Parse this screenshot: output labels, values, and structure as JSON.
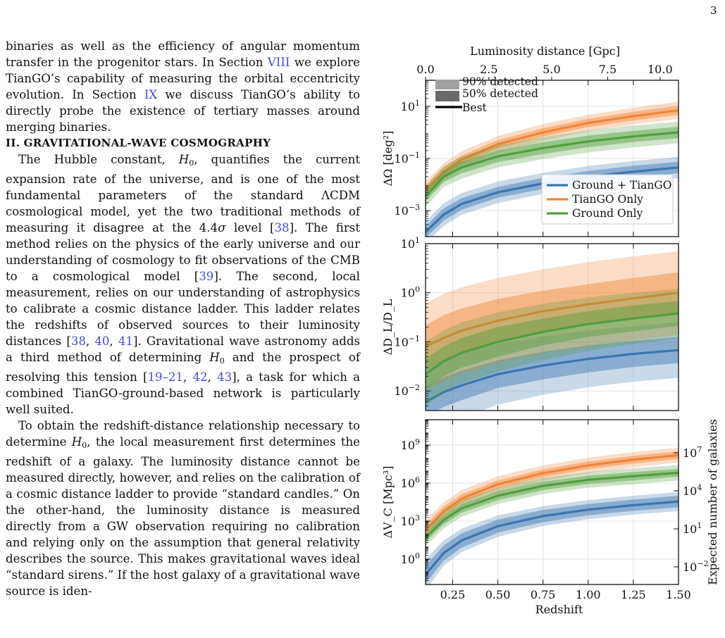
{
  "page_number": "3",
  "body": {
    "intro_paragraph": [
      {
        "t": "binaries as well as the efficiency of angular momentum transfer in the progenitor stars. In Section "
      },
      {
        "t": "VIII",
        "ref": true
      },
      {
        "t": " we explore TianGO’s capability of measuring the orbital eccentricity evolution. In Section "
      },
      {
        "t": "IX",
        "ref": true
      },
      {
        "t": " we discuss TianGO’s ability to directly probe the existence of tertiary masses around merging binaries."
      }
    ],
    "section_heading": "II.   GRAVITATIONAL-WAVE COSMOGRAPHY",
    "paragraph_1": [
      {
        "t": "The Hubble constant, "
      },
      {
        "t": "H",
        "i": true
      },
      {
        "t": "0",
        "sub": true
      },
      {
        "t": ", quantifies the current expansion rate of the universe, and is one of the most fundamental parameters of the standard ΛCDM cosmological model, yet the two traditional methods of measuring it disagree at the 4.4"
      },
      {
        "t": "σ",
        "i": true
      },
      {
        "t": " level ["
      },
      {
        "t": "38",
        "ref": true
      },
      {
        "t": "]. The first method relies on the physics of the early universe and our understanding of cosmology to fit observations of the CMB to a cosmological model ["
      },
      {
        "t": "39",
        "ref": true
      },
      {
        "t": "]. The second, local measurement, relies on our understanding of astrophysics to calibrate a cosmic distance ladder. This ladder relates the redshifts of observed sources to their luminosity distances ["
      },
      {
        "t": "38",
        "ref": true
      },
      {
        "t": ", "
      },
      {
        "t": "40",
        "ref": true
      },
      {
        "t": ", "
      },
      {
        "t": "41",
        "ref": true
      },
      {
        "t": "]. Gravitational wave astronomy adds a third method of determining "
      },
      {
        "t": "H",
        "i": true
      },
      {
        "t": "0",
        "sub": true
      },
      {
        "t": " and the prospect of resolving this tension ["
      },
      {
        "t": "19–21",
        "ref": true
      },
      {
        "t": ", "
      },
      {
        "t": "42",
        "ref": true
      },
      {
        "t": ", "
      },
      {
        "t": "43",
        "ref": true
      },
      {
        "t": "], a task for which a combined TianGO-ground-based network is particularly well suited."
      }
    ],
    "paragraph_2": [
      {
        "t": "To obtain the redshift-distance relationship necessary to determine "
      },
      {
        "t": "H",
        "i": true
      },
      {
        "t": "0",
        "sub": true
      },
      {
        "t": ", the local measurement first determines the redshift of a galaxy. The luminosity distance cannot be measured directly, however, and relies on the calibration of a cosmic distance ladder to provide “standard candles.” On the other-hand, the luminosity distance is measured directly from a GW observation requiring no calibration and relying only on the assumption that general relativity describes the source. This makes gravitational waves ideal “standard sirens.” If the host galaxy of a gravitational wave source is iden-"
      }
    ]
  },
  "chart_data": [
    {
      "type": "area",
      "panel": "sky-localization",
      "top_axis_label": "Luminosity distance [Gpc]",
      "top_ticks": [
        "0.0",
        "2.5",
        "5.0",
        "7.5",
        "10.0"
      ],
      "top_tick_distances_gpc": [
        0.0,
        2.5,
        5.0,
        7.5,
        10.0
      ],
      "ylabel": "ΔΩ [deg²]",
      "yscale": "log",
      "ylim": [
        0.0001,
        100
      ],
      "yticks": [
        0.001,
        0.1,
        10
      ],
      "ytick_labels": [
        {
          "base": "10",
          "exp": "−3"
        },
        {
          "base": "10",
          "exp": "−1"
        },
        {
          "base": "10",
          "exp": "1"
        }
      ],
      "xlim": [
        0.1,
        1.5
      ],
      "legend_position": "lower-right",
      "band_legend_position": "top-left",
      "band_legend": [
        "90% detected",
        "50% detected",
        "Best"
      ],
      "x": [
        0.1,
        0.2,
        0.3,
        0.5,
        0.75,
        1.0,
        1.25,
        1.5
      ],
      "series": [
        {
          "name": "Ground + TianGO",
          "color": "#3b75af",
          "best": [
            0.00015,
            0.0007,
            0.0018,
            0.005,
            0.011,
            0.02,
            0.031,
            0.045
          ],
          "band50_top": [
            0.00025,
            0.0012,
            0.003,
            0.008,
            0.018,
            0.033,
            0.052,
            0.075
          ],
          "band90_top": [
            0.0004,
            0.0019,
            0.0047,
            0.013,
            0.028,
            0.051,
            0.08,
            0.115
          ]
        },
        {
          "name": "TianGO Only",
          "color": "#ef8636",
          "best": [
            0.006,
            0.03,
            0.09,
            0.35,
            1.0,
            2.3,
            4.2,
            7.0
          ],
          "band50_top": [
            0.009,
            0.045,
            0.13,
            0.5,
            1.45,
            3.3,
            6.2,
            10.5
          ],
          "band90_top": [
            0.013,
            0.065,
            0.19,
            0.72,
            2.1,
            4.7,
            8.8,
            15.0
          ]
        },
        {
          "name": "Ground Only",
          "color": "#519e3e",
          "best": [
            0.0035,
            0.02,
            0.045,
            0.12,
            0.25,
            0.45,
            0.7,
            1.0
          ],
          "band50_top": [
            0.0055,
            0.032,
            0.075,
            0.2,
            0.42,
            0.75,
            1.15,
            1.65
          ],
          "band90_top": [
            0.009,
            0.05,
            0.12,
            0.32,
            0.66,
            1.2,
            1.85,
            2.6
          ]
        }
      ]
    },
    {
      "type": "area",
      "panel": "distance-uncertainty",
      "ylabel": "ΔD_L/D_L",
      "yscale": "log",
      "ylim": [
        0.004,
        10
      ],
      "yticks": [
        0.01,
        0.1,
        1,
        10
      ],
      "ytick_labels": [
        {
          "base": "10",
          "exp": "−2"
        },
        {
          "base": "10",
          "exp": "−1"
        },
        {
          "base": "10",
          "exp": "0"
        },
        {
          "base": "10",
          "exp": "1"
        }
      ],
      "xlim": [
        0.1,
        1.5
      ],
      "x": [
        0.1,
        0.2,
        0.3,
        0.5,
        0.75,
        1.0,
        1.25,
        1.5
      ],
      "series": [
        {
          "name": "Ground + TianGO",
          "color": "#3b75af",
          "best": [
            0.006,
            0.0095,
            0.013,
            0.022,
            0.033,
            0.045,
            0.057,
            0.068
          ],
          "band50_top": [
            0.012,
            0.019,
            0.026,
            0.042,
            0.063,
            0.085,
            0.105,
            0.125
          ],
          "band90_top": [
            0.03,
            0.045,
            0.06,
            0.092,
            0.13,
            0.17,
            0.21,
            0.25
          ]
        },
        {
          "name": "TianGO Only",
          "color": "#ef8636",
          "best": [
            0.08,
            0.12,
            0.17,
            0.27,
            0.42,
            0.58,
            0.77,
            1.0
          ],
          "band50_top": [
            0.22,
            0.35,
            0.48,
            0.75,
            1.1,
            1.5,
            2.0,
            2.6
          ],
          "band90_top": [
            0.6,
            0.95,
            1.3,
            2.0,
            3.0,
            4.2,
            5.5,
            7.0
          ]
        },
        {
          "name": "Ground Only",
          "color": "#519e3e",
          "best": [
            0.022,
            0.04,
            0.06,
            0.1,
            0.16,
            0.23,
            0.3,
            0.38
          ],
          "band50_top": [
            0.045,
            0.08,
            0.12,
            0.2,
            0.3,
            0.42,
            0.55,
            0.68
          ],
          "band90_top": [
            0.1,
            0.17,
            0.25,
            0.4,
            0.6,
            0.8,
            1.0,
            1.2
          ]
        }
      ]
    },
    {
      "type": "area",
      "panel": "comoving-volume",
      "xlabel": "Redshift",
      "xticks": [
        0.25,
        0.5,
        0.75,
        1.0,
        1.25,
        1.5
      ],
      "xtick_labels": [
        "0.25",
        "0.50",
        "0.75",
        "1.00",
        "1.25",
        "1.50"
      ],
      "ylabel": "ΔV_C [Mpc³]",
      "yscale": "log",
      "ylim": [
        0.01,
        100000000000
      ],
      "yticks": [
        1,
        1000,
        1000000,
        1000000000
      ],
      "ytick_labels": [
        {
          "base": "10",
          "exp": "0"
        },
        {
          "base": "10",
          "exp": "3"
        },
        {
          "base": "10",
          "exp": "6"
        },
        {
          "base": "10",
          "exp": "9"
        }
      ],
      "right_ylabel": "Expected number of galaxies",
      "right_ytick_labels": [
        {
          "base": "10",
          "exp": "−2"
        },
        {
          "base": "10",
          "exp": "1"
        },
        {
          "base": "10",
          "exp": "4"
        },
        {
          "base": "10",
          "exp": "7"
        }
      ],
      "xlim": [
        0.1,
        1.5
      ],
      "x": [
        0.1,
        0.2,
        0.3,
        0.5,
        0.75,
        1.0,
        1.25,
        1.5
      ],
      "series": [
        {
          "name": "Ground + TianGO",
          "color": "#3b75af",
          "best": [
            0.06,
            3,
            30,
            400,
            2500,
            8000,
            18000,
            35000
          ],
          "band50_top": [
            0.3,
            12,
            110,
            1300,
            7500,
            22000,
            50000,
            100000
          ],
          "band90_top": [
            1,
            30,
            250,
            2800,
            15000,
            45000,
            100000,
            200000
          ]
        },
        {
          "name": "TianGO Only",
          "color": "#ef8636",
          "best": [
            200,
            6000,
            60000,
            800000,
            6000000,
            25000000,
            70000000,
            160000000
          ],
          "band50_top": [
            500,
            14000,
            130000,
            1600000,
            12000000,
            50000000,
            140000000,
            320000000
          ],
          "band90_top": [
            1200,
            30000,
            280000,
            3500000,
            25000000,
            100000000,
            280000000,
            600000000
          ]
        },
        {
          "name": "Ground Only",
          "color": "#519e3e",
          "best": [
            50,
            1200,
            10000,
            100000,
            600000,
            1800000,
            3500000,
            6500000
          ],
          "band50_top": [
            110,
            2600,
            22000,
            220000,
            1300000,
            3800000,
            7500000,
            13000000
          ],
          "band90_top": [
            250,
            5500,
            45000,
            450000,
            2600000,
            7500000,
            15000000,
            26000000
          ]
        }
      ]
    }
  ]
}
